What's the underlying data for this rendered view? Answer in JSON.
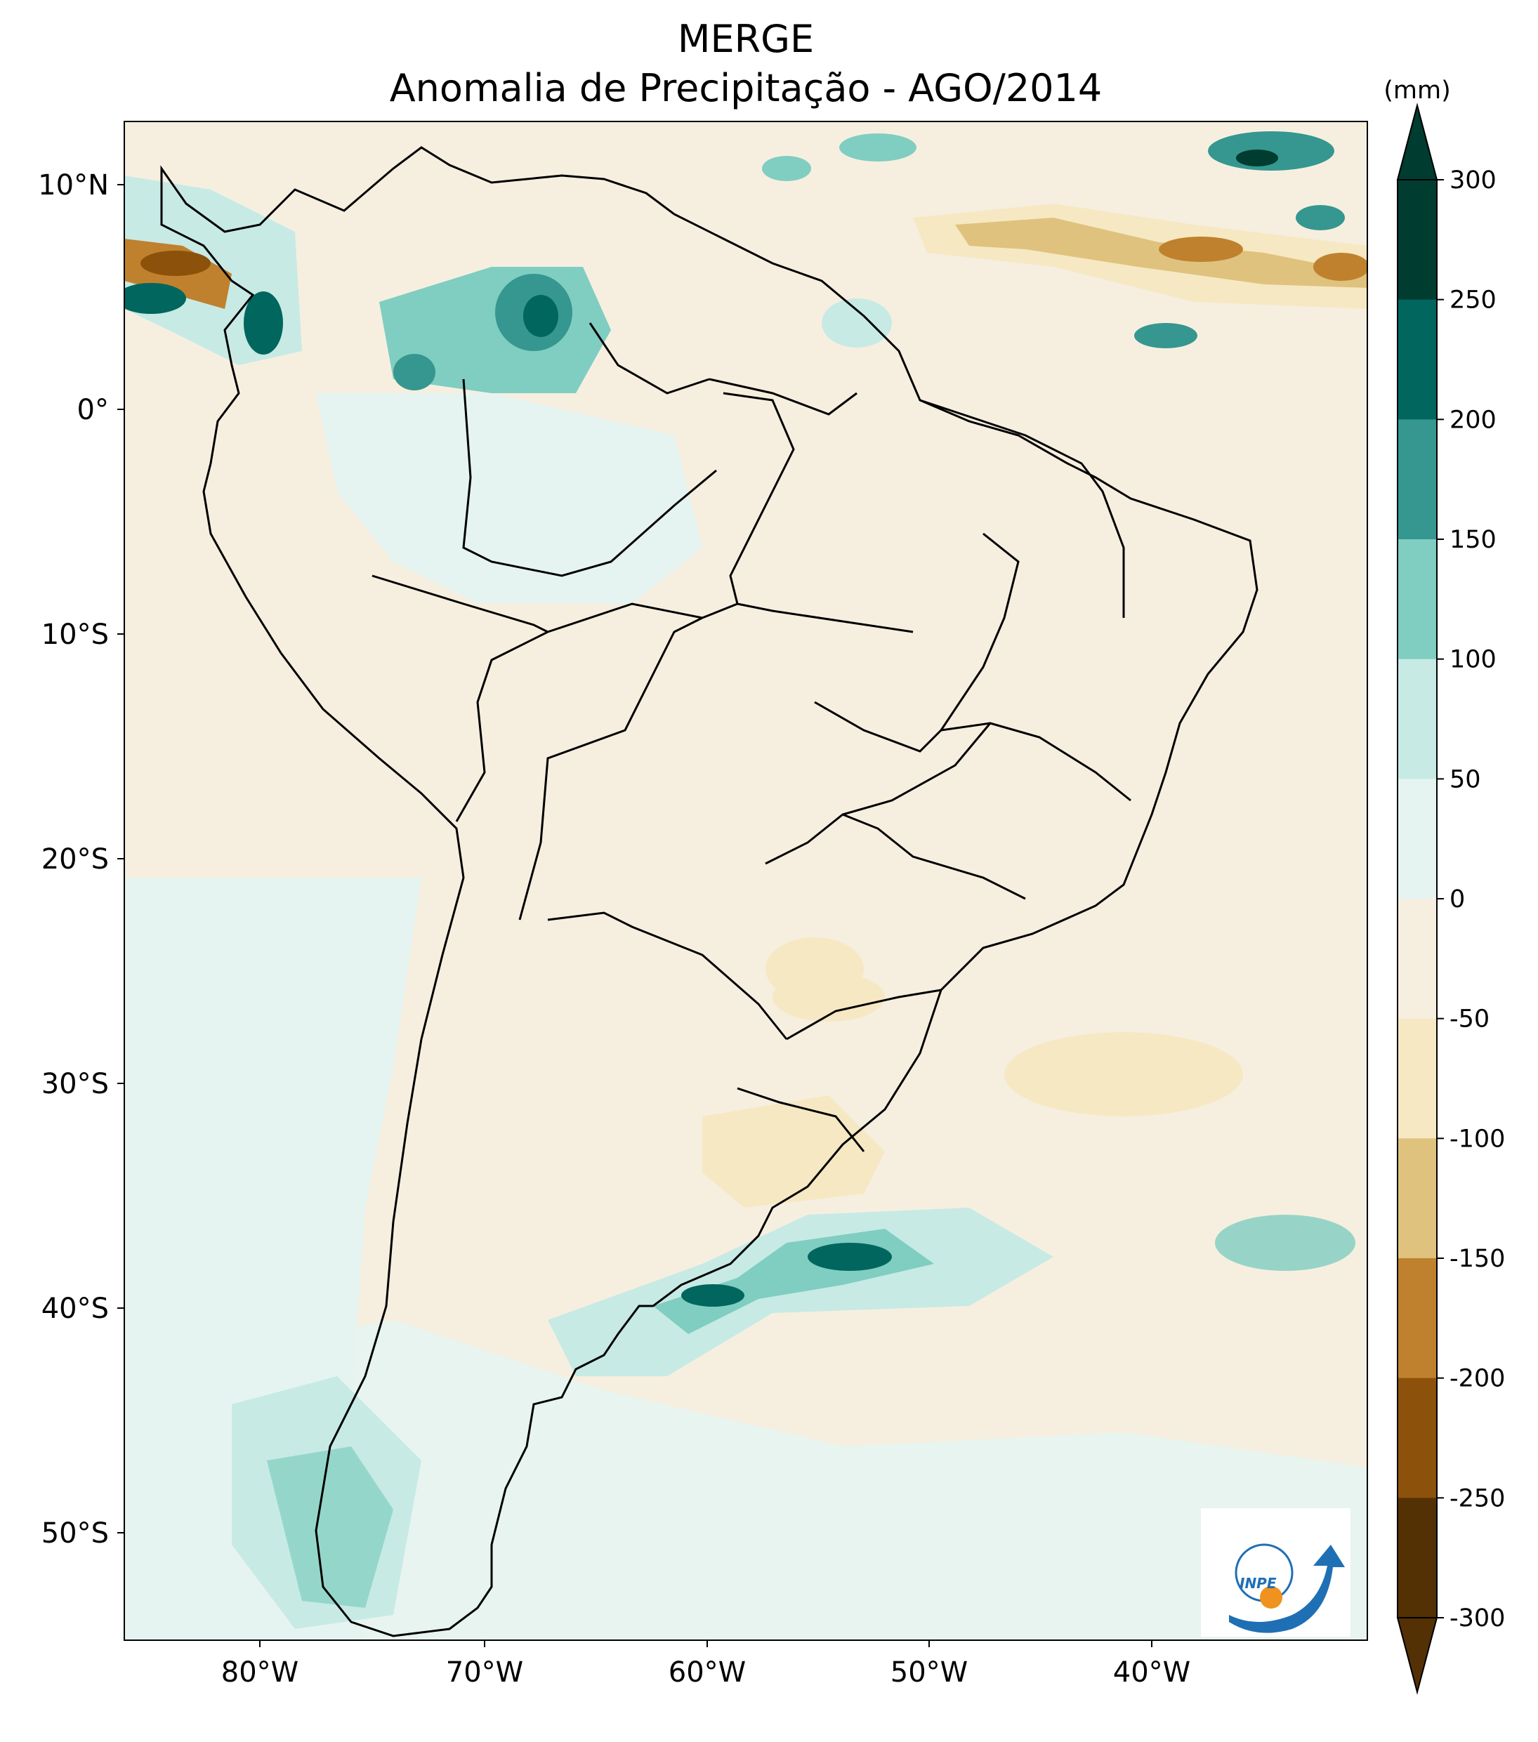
{
  "title": "MERGE",
  "subtitle": "Anomalia de Precipitação - AGO/2014",
  "lat_ticks": [
    "10°N",
    "0°",
    "10°S",
    "20°S",
    "30°S",
    "40°S",
    "50°S"
  ],
  "lon_ticks": [
    "80°W",
    "70°W",
    "60°W",
    "50°W",
    "40°W"
  ],
  "colorbar": {
    "unit": "(mm)",
    "ticks": [
      "300",
      "250",
      "200",
      "150",
      "100",
      "50",
      "0",
      "-50",
      "-100",
      "-150",
      "-200",
      "-250",
      "-300"
    ],
    "colors": [
      "#003c30",
      "#01665e",
      "#35978f",
      "#80cdc1",
      "#c7eae5",
      "#e6f4f1",
      "#f6efe0",
      "#f6e8c3",
      "#dfc27d",
      "#bf812d",
      "#8c510a",
      "#543005"
    ]
  },
  "logo": {
    "text": "INPE"
  }
}
